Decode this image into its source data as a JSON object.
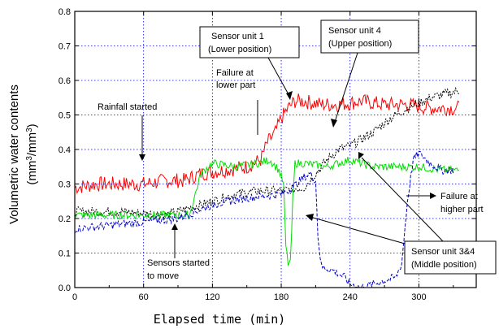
{
  "chart_data": {
    "type": "line",
    "xlabel": "Elapsed time (min)",
    "ylabel_line1": "Volumetric water contents",
    "ylabel_line2_prefix": "(mm",
    "ylabel_line2_sup1": "3",
    "ylabel_line2_mid": "/mm",
    "ylabel_line2_sup2": "3",
    "ylabel_line2_suffix": ")",
    "xlim": [
      0,
      350
    ],
    "ylim": [
      0.0,
      0.8
    ],
    "x_ticks": [
      0,
      60,
      120,
      180,
      240,
      300
    ],
    "x_tick_labels": [
      "0",
      "60",
      "120",
      "180",
      "240",
      "300"
    ],
    "y_ticks": [
      0.0,
      0.1,
      0.2,
      0.3,
      0.4,
      0.5,
      0.6,
      0.7,
      0.8
    ],
    "y_tick_labels": [
      "0.0",
      "0.1",
      "0.2",
      "0.3",
      "0.4",
      "0.5",
      "0.6",
      "0.7",
      "0.8"
    ],
    "grid": true,
    "series": [
      {
        "color": "#ff0000",
        "style": "solid",
        "x": [
          0,
          20,
          40,
          60,
          80,
          95,
          110,
          130,
          150,
          162,
          168,
          175,
          180,
          186,
          192,
          200,
          215,
          230,
          250,
          270,
          290,
          310,
          335
        ],
        "y": [
          0.29,
          0.3,
          0.3,
          0.3,
          0.31,
          0.31,
          0.33,
          0.34,
          0.35,
          0.37,
          0.42,
          0.45,
          0.49,
          0.52,
          0.54,
          0.54,
          0.53,
          0.53,
          0.54,
          0.53,
          0.53,
          0.52,
          0.52
        ]
      },
      {
        "color": "#000000",
        "style": "dotted",
        "x": [
          0,
          40,
          80,
          100,
          120,
          140,
          160,
          180,
          200,
          210,
          220,
          230,
          240,
          250,
          260,
          275,
          290,
          310,
          335
        ],
        "y": [
          0.22,
          0.22,
          0.21,
          0.23,
          0.25,
          0.27,
          0.28,
          0.28,
          0.29,
          0.33,
          0.37,
          0.4,
          0.41,
          0.43,
          0.45,
          0.49,
          0.52,
          0.55,
          0.57
        ]
      },
      {
        "color": "#00dd00",
        "style": "solid",
        "x": [
          0,
          40,
          80,
          100,
          110,
          120,
          140,
          160,
          170,
          178,
          182,
          184,
          186,
          188,
          190,
          192,
          200,
          220,
          240,
          260,
          280,
          300,
          320,
          335
        ],
        "y": [
          0.21,
          0.21,
          0.21,
          0.21,
          0.33,
          0.36,
          0.35,
          0.36,
          0.37,
          0.34,
          0.3,
          0.12,
          0.07,
          0.07,
          0.25,
          0.36,
          0.36,
          0.35,
          0.37,
          0.35,
          0.35,
          0.35,
          0.34,
          0.34
        ]
      },
      {
        "color": "#0000cc",
        "style": "dashed",
        "x": [
          0,
          30,
          60,
          90,
          120,
          150,
          180,
          190,
          200,
          205,
          210,
          212,
          215,
          225,
          235,
          240,
          250,
          260,
          270,
          280,
          285,
          290,
          295,
          300,
          310,
          320,
          330
        ],
        "y": [
          0.17,
          0.18,
          0.19,
          0.2,
          0.24,
          0.26,
          0.27,
          0.29,
          0.32,
          0.33,
          0.31,
          0.15,
          0.06,
          0.05,
          0.03,
          0.01,
          0.0,
          0.01,
          0.02,
          0.03,
          0.07,
          0.25,
          0.37,
          0.39,
          0.36,
          0.34,
          0.34
        ]
      }
    ],
    "annotations": [
      {
        "id": "rainfall",
        "lines": [
          "Rainfall started"
        ]
      },
      {
        "id": "failure-lower",
        "lines": [
          "Failure at",
          "lower part"
        ]
      },
      {
        "id": "sensor1",
        "lines": [
          "Sensor unit 1",
          "(Lower position)"
        ]
      },
      {
        "id": "sensor4",
        "lines": [
          "Sensor unit 4",
          "(Upper position)"
        ]
      },
      {
        "id": "failure-higher",
        "lines": [
          "Failure at",
          "higher part"
        ]
      },
      {
        "id": "sensors-move",
        "lines": [
          "Sensors started",
          "to move"
        ]
      },
      {
        "id": "sensor34",
        "lines": [
          "Sensor unit 3&4",
          "(Middle position)"
        ]
      }
    ]
  }
}
